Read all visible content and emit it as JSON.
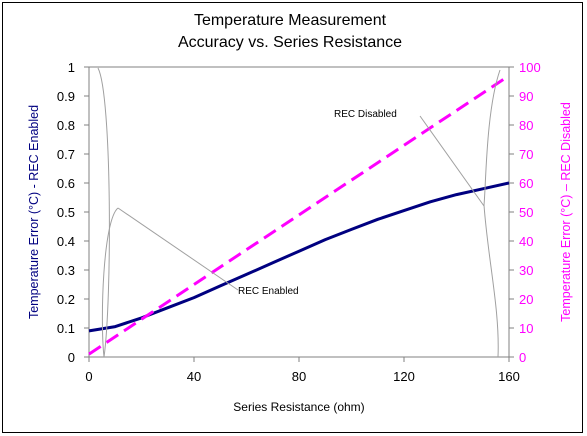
{
  "chart_data": {
    "type": "line",
    "title_line1": "Temperature Measurement",
    "title_line2": "Accuracy vs. Series Resistance",
    "xlabel": "Series Resistance (ohm)",
    "ylabel_left": "Temperature Error (°C) - REC Enabled",
    "ylabel_right": "Temperature Error (°C) – REC Disabled",
    "xlim": [
      0,
      160
    ],
    "ylim_left": [
      0,
      1
    ],
    "ylim_right": [
      0,
      100
    ],
    "x_ticks": [
      "0",
      "40",
      "80",
      "120",
      "160"
    ],
    "y_ticks_left": [
      "0",
      "0.1",
      "0.2",
      "0.3",
      "0.4",
      "0.5",
      "0.6",
      "0.7",
      "0.8",
      "0.9",
      "1"
    ],
    "y_ticks_right": [
      "0",
      "10",
      "20",
      "30",
      "40",
      "50",
      "60",
      "70",
      "80",
      "90",
      "100"
    ],
    "grid": false,
    "series": [
      {
        "name": "REC Enabled",
        "axis": "left",
        "color": "#000080",
        "style": "solid",
        "x": [
          0,
          10,
          20,
          30,
          40,
          50,
          60,
          70,
          80,
          90,
          100,
          110,
          120,
          130,
          140,
          150,
          160
        ],
        "y": [
          0.09,
          0.105,
          0.135,
          0.17,
          0.205,
          0.245,
          0.285,
          0.325,
          0.365,
          0.405,
          0.44,
          0.475,
          0.505,
          0.535,
          0.56,
          0.58,
          0.6
        ]
      },
      {
        "name": "REC Disabled",
        "axis": "right",
        "color": "#ff00ff",
        "style": "dashed",
        "x": [
          0,
          160
        ],
        "y": [
          1,
          97
        ]
      }
    ],
    "annotations": [
      {
        "text": "REC Disabled",
        "series": "REC Disabled"
      },
      {
        "text": "REC Enabled",
        "series": "REC Enabled"
      }
    ]
  }
}
